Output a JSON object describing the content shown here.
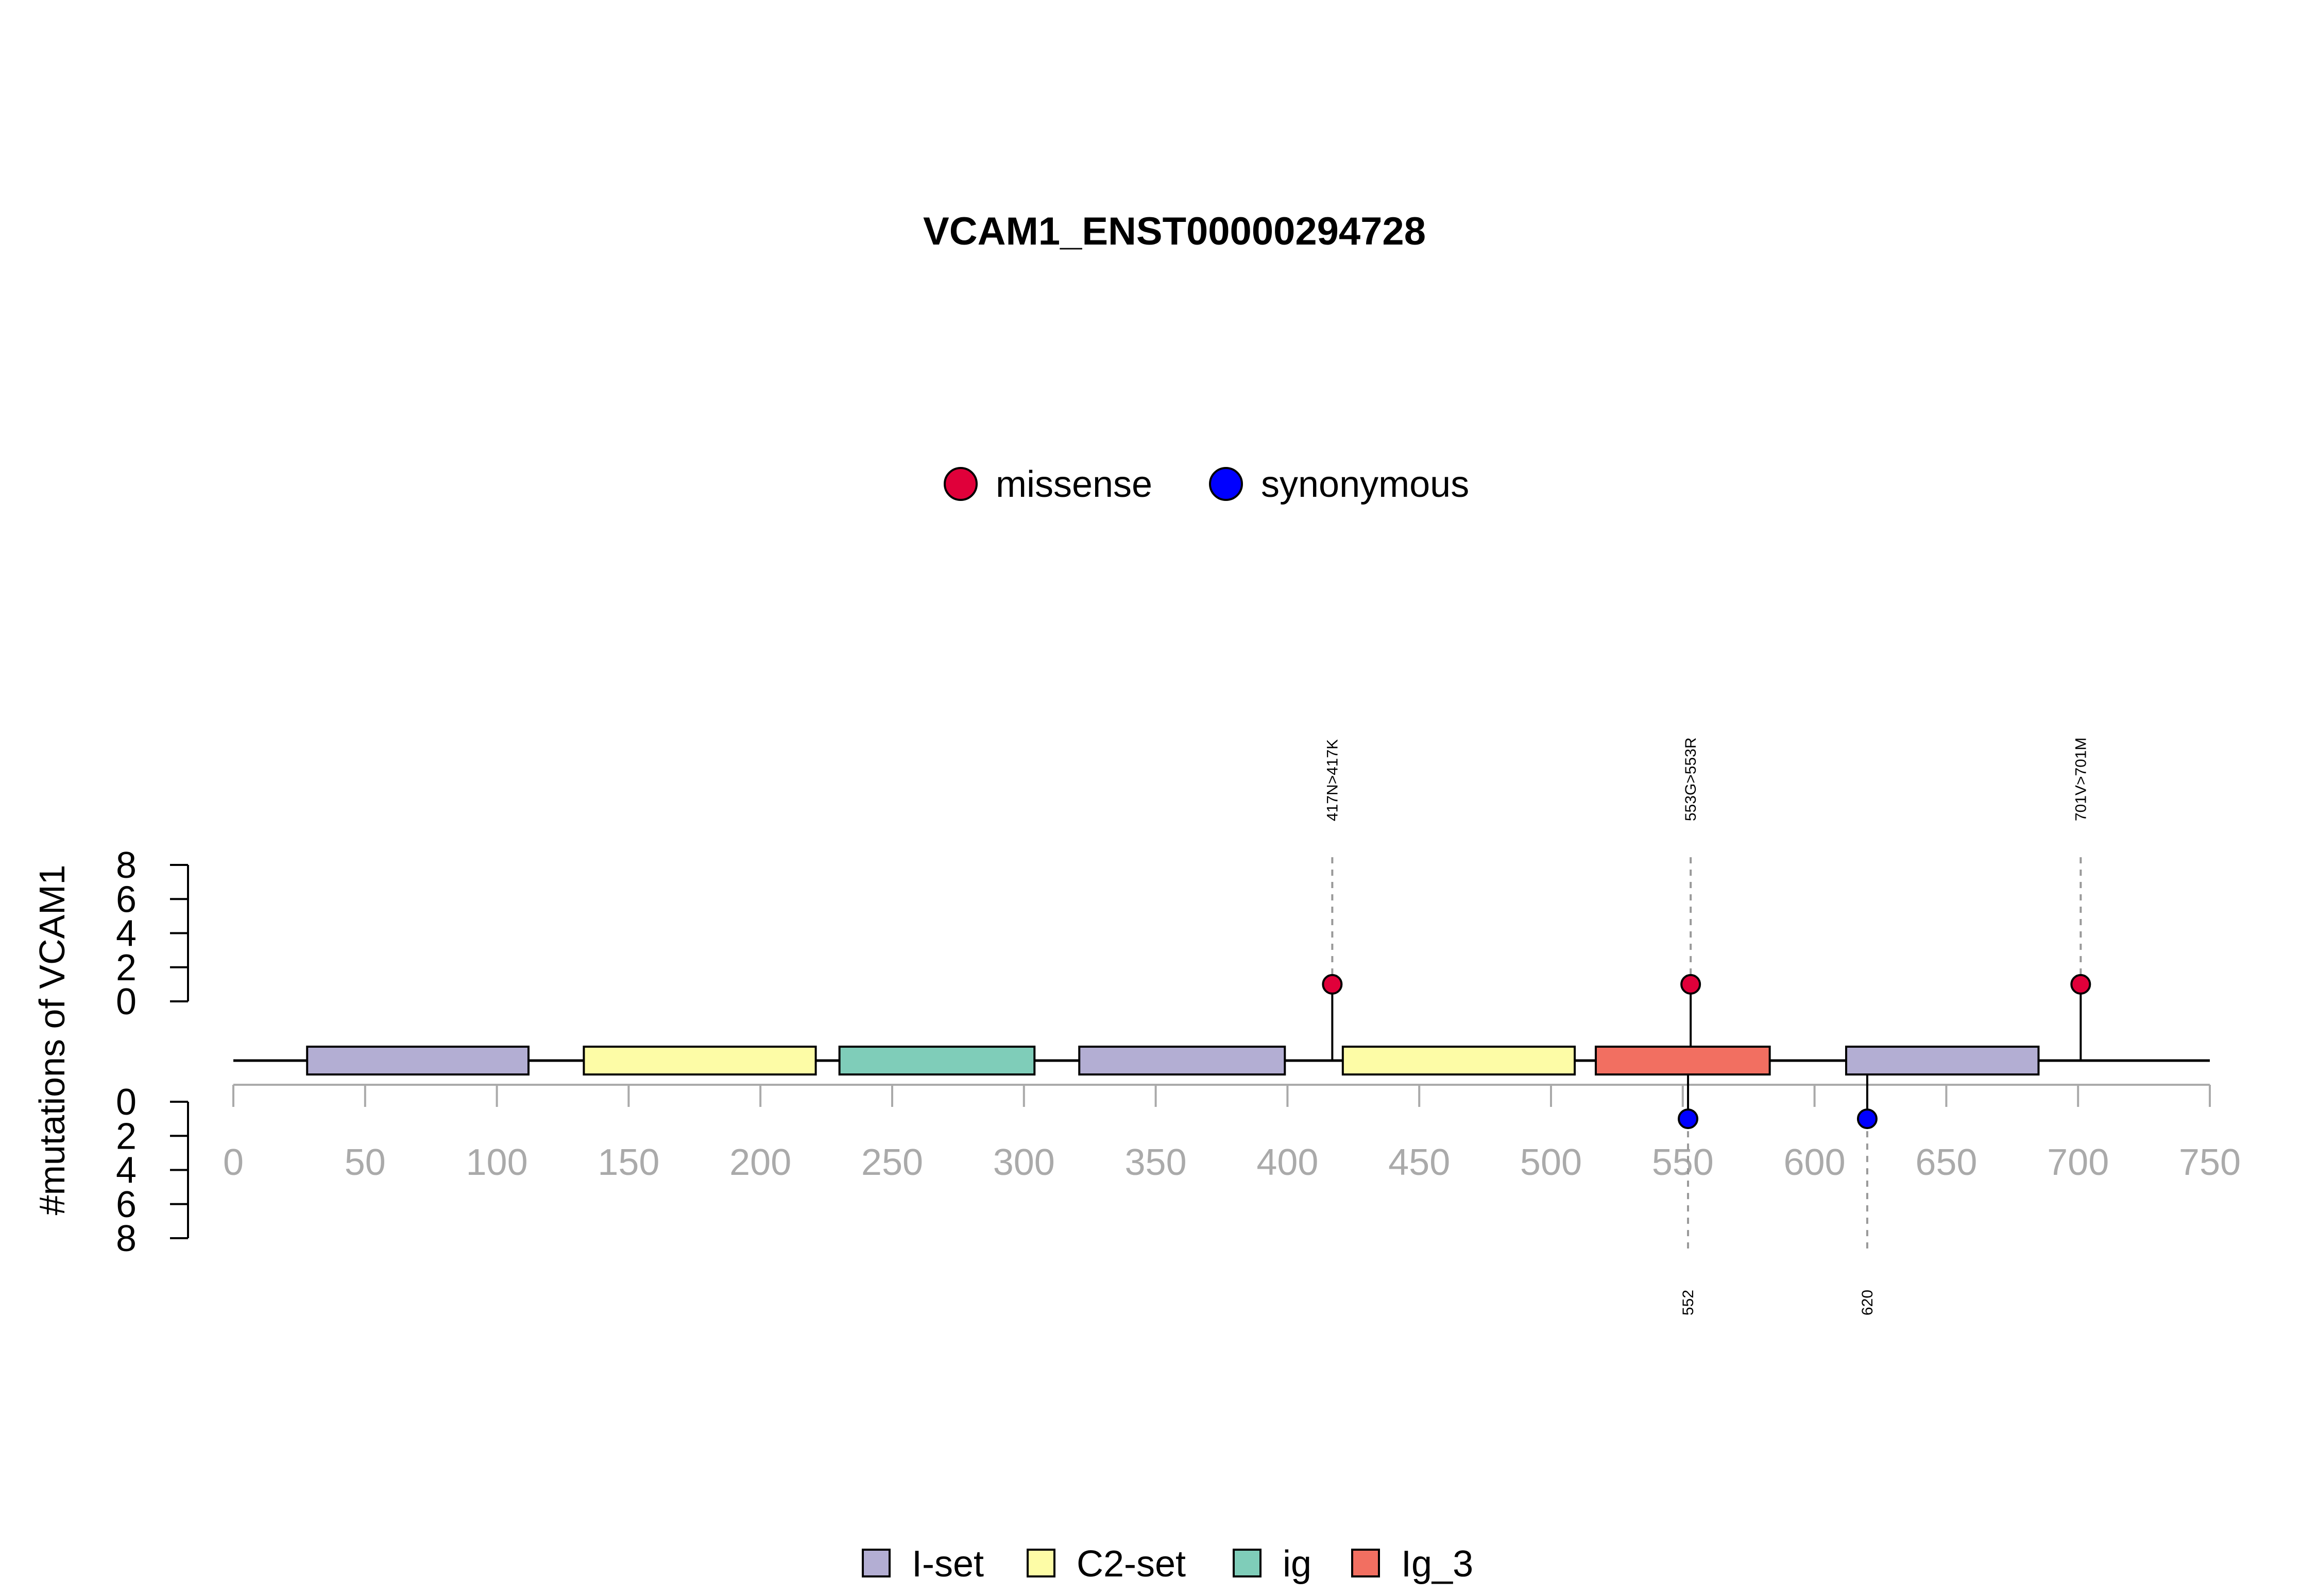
{
  "chart_data": {
    "type": "lollipop",
    "title": "VCAM1_ENST00000294728",
    "ylabel": "#mutations of VCAM1",
    "xlim": [
      0,
      750
    ],
    "x_ticks": [
      "0",
      "50",
      "100",
      "150",
      "200",
      "250",
      "300",
      "350",
      "400",
      "450",
      "500",
      "550",
      "600",
      "650",
      "700",
      "750"
    ],
    "ylim_upper": [
      0,
      8
    ],
    "ylim_lower": [
      0,
      8
    ],
    "y_ticks_upper": [
      "0",
      "2",
      "4",
      "6",
      "8"
    ],
    "y_ticks_lower": [
      "0",
      "2",
      "4",
      "6",
      "8"
    ],
    "mutation_types": [
      {
        "name": "missense",
        "color": "#E0003A"
      },
      {
        "name": "synonymous",
        "color": "#0000FF"
      }
    ],
    "mutations_upper": [
      {
        "position": 417,
        "count": 1,
        "type": "missense",
        "label": "417N>417K"
      },
      {
        "position": 553,
        "count": 1,
        "type": "missense",
        "label": "553G>553R"
      },
      {
        "position": 701,
        "count": 1,
        "type": "missense",
        "label": "701V>701M"
      }
    ],
    "mutations_lower": [
      {
        "position": 552,
        "count": 1,
        "type": "synonymous",
        "label": "552"
      },
      {
        "position": 620,
        "count": 1,
        "type": "synonymous",
        "label": "620"
      }
    ],
    "domain_types": [
      {
        "name": "I-set",
        "color": "#B3AED3"
      },
      {
        "name": "C2-set",
        "color": "#FDFCA6"
      },
      {
        "name": "ig",
        "color": "#7FCDB9"
      },
      {
        "name": "Ig_3",
        "color": "#F26F61"
      }
    ],
    "domains": [
      {
        "name": "I-set",
        "start": 28,
        "end": 112
      },
      {
        "name": "C2-set",
        "start": 133,
        "end": 221
      },
      {
        "name": "ig",
        "start": 230,
        "end": 304
      },
      {
        "name": "I-set",
        "start": 321,
        "end": 399
      },
      {
        "name": "C2-set",
        "start": 421,
        "end": 509
      },
      {
        "name": "Ig_3",
        "start": 517,
        "end": 583
      },
      {
        "name": "I-set",
        "start": 612,
        "end": 685
      }
    ]
  }
}
